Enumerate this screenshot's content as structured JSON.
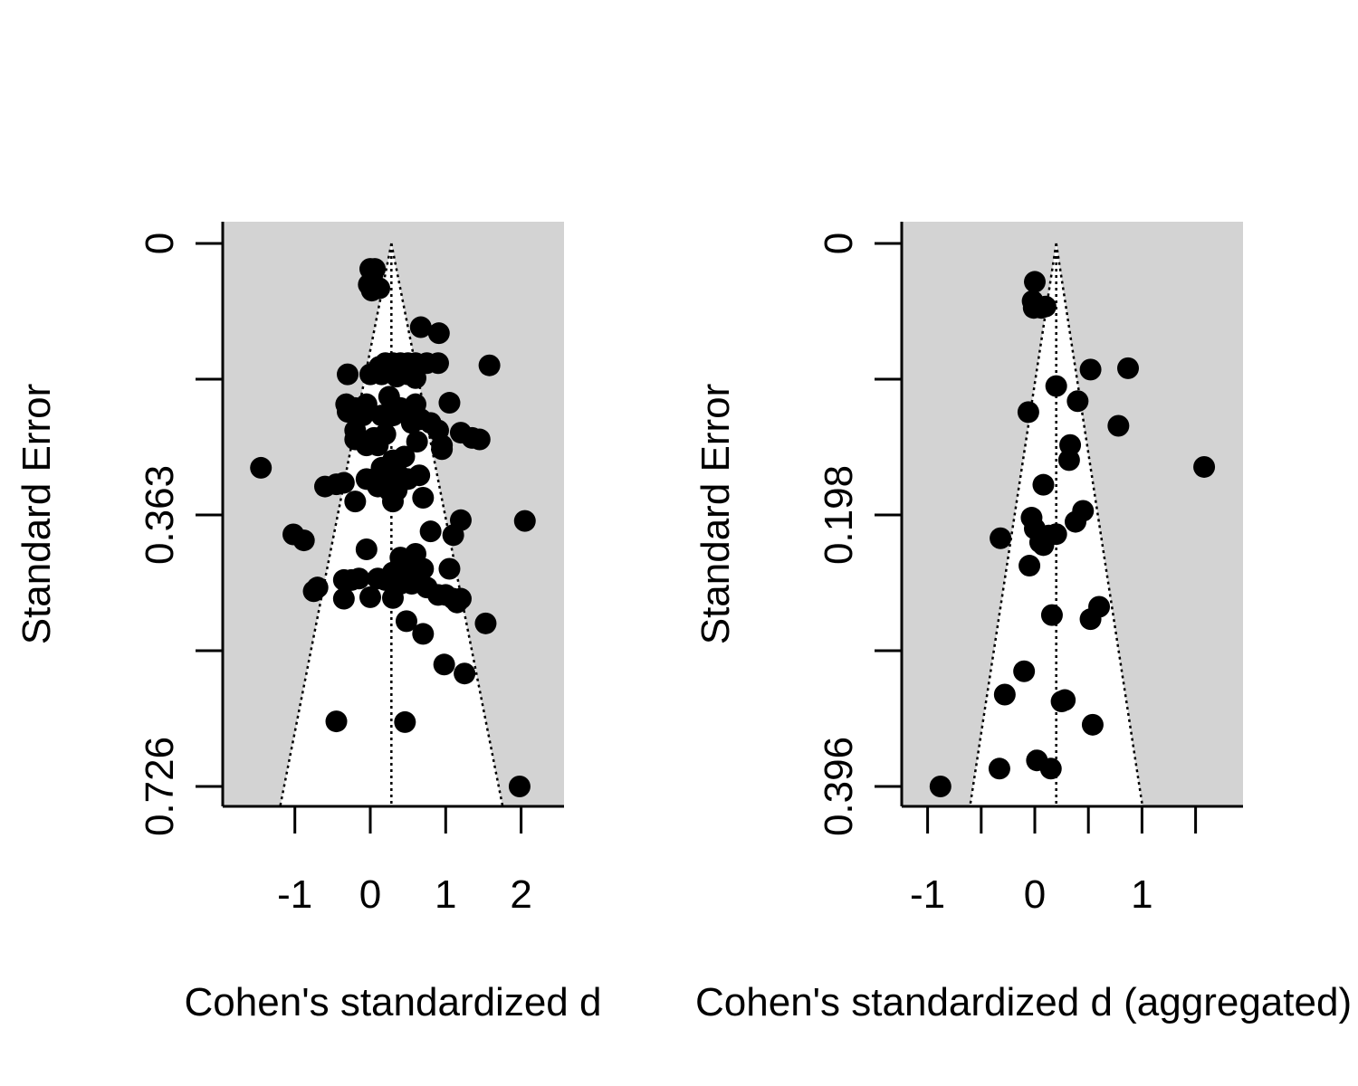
{
  "chart_data": [
    {
      "type": "scatter",
      "subtype": "funnel",
      "title": "",
      "xlabel": "Cohen's standardized d",
      "ylabel": "Standard Error",
      "xlim": [
        -1.96,
        2.56
      ],
      "ylim_reversed": [
        0,
        0.726
      ],
      "xticks": [
        -1,
        0,
        1,
        2
      ],
      "yticks": [
        0,
        0.1815,
        0.363,
        0.5445,
        0.726
      ],
      "ytick_labels": [
        "0",
        "",
        "0.363",
        "",
        "0.726"
      ],
      "pooled_estimate": 0.28,
      "background_color": "#d3d3d3",
      "funnel_color": "#ffffff",
      "points": [
        [
          0.0,
          0.034
        ],
        [
          0.06,
          0.034
        ],
        [
          0.03,
          0.041
        ],
        [
          -0.02,
          0.055
        ],
        [
          0.08,
          0.058
        ],
        [
          0.12,
          0.06
        ],
        [
          0.02,
          0.063
        ],
        [
          0.67,
          0.112
        ],
        [
          0.91,
          0.12
        ],
        [
          1.58,
          0.163
        ],
        [
          0.9,
          0.16
        ],
        [
          0.75,
          0.16
        ],
        [
          0.6,
          0.16
        ],
        [
          0.5,
          0.16
        ],
        [
          0.4,
          0.16
        ],
        [
          0.3,
          0.16
        ],
        [
          0.2,
          0.16
        ],
        [
          0.12,
          0.165
        ],
        [
          0.58,
          0.165
        ],
        [
          -0.3,
          0.175
        ],
        [
          0.0,
          0.175
        ],
        [
          0.15,
          0.175
        ],
        [
          0.35,
          0.178
        ],
        [
          0.5,
          0.175
        ],
        [
          0.6,
          0.18
        ],
        [
          0.25,
          0.205
        ],
        [
          -0.32,
          0.215
        ],
        [
          -0.2,
          0.22
        ],
        [
          -0.05,
          0.215
        ],
        [
          0.4,
          0.22
        ],
        [
          0.6,
          0.215
        ],
        [
          1.05,
          0.213
        ],
        [
          -0.3,
          0.225
        ],
        [
          -0.1,
          0.23
        ],
        [
          0.15,
          0.23
        ],
        [
          0.3,
          0.23
        ],
        [
          0.55,
          0.24
        ],
        [
          0.8,
          0.24
        ],
        [
          0.67,
          0.235
        ],
        [
          -0.2,
          0.25
        ],
        [
          0.05,
          0.26
        ],
        [
          0.2,
          0.255
        ],
        [
          0.9,
          0.25
        ],
        [
          1.2,
          0.253
        ],
        [
          1.35,
          0.26
        ],
        [
          1.45,
          0.262
        ],
        [
          0.95,
          0.27
        ],
        [
          -0.2,
          0.262
        ],
        [
          -0.05,
          0.27
        ],
        [
          0.1,
          0.27
        ],
        [
          0.62,
          0.265
        ],
        [
          0.95,
          0.275
        ],
        [
          -1.45,
          0.3
        ],
        [
          0.15,
          0.3
        ],
        [
          0.3,
          0.29
        ],
        [
          0.45,
          0.285
        ],
        [
          0.12,
          0.31
        ],
        [
          0.38,
          0.31
        ],
        [
          -0.05,
          0.315
        ],
        [
          0.2,
          0.315
        ],
        [
          0.5,
          0.315
        ],
        [
          0.65,
          0.31
        ],
        [
          -0.6,
          0.325
        ],
        [
          -0.45,
          0.322
        ],
        [
          -0.35,
          0.32
        ],
        [
          0.1,
          0.325
        ],
        [
          0.25,
          0.33
        ],
        [
          0.35,
          0.33
        ],
        [
          0.7,
          0.34
        ],
        [
          -0.2,
          0.345
        ],
        [
          0.3,
          0.345
        ],
        [
          2.05,
          0.371
        ],
        [
          1.2,
          0.37
        ],
        [
          0.8,
          0.385
        ],
        [
          1.1,
          0.39
        ],
        [
          -1.02,
          0.389
        ],
        [
          -0.88,
          0.397
        ],
        [
          -0.05,
          0.409
        ],
        [
          0.4,
          0.42
        ],
        [
          0.6,
          0.415
        ],
        [
          0.5,
          0.43
        ],
        [
          0.7,
          0.435
        ],
        [
          1.05,
          0.435
        ],
        [
          0.3,
          0.44
        ],
        [
          -0.35,
          0.45
        ],
        [
          -0.25,
          0.45
        ],
        [
          -0.15,
          0.448
        ],
        [
          0.1,
          0.448
        ],
        [
          0.2,
          0.45
        ],
        [
          0.4,
          0.455
        ],
        [
          0.55,
          0.455
        ],
        [
          0.75,
          0.46
        ],
        [
          0.9,
          0.47
        ],
        [
          -0.7,
          0.46
        ],
        [
          -0.75,
          0.465
        ],
        [
          -0.35,
          0.475
        ],
        [
          0.0,
          0.473
        ],
        [
          0.3,
          0.474
        ],
        [
          1.0,
          0.47
        ],
        [
          1.1,
          0.475
        ],
        [
          1.2,
          0.475
        ],
        [
          1.15,
          0.48
        ],
        [
          0.48,
          0.505
        ],
        [
          1.53,
          0.508
        ],
        [
          0.7,
          0.522
        ],
        [
          0.98,
          0.563
        ],
        [
          1.25,
          0.575
        ],
        [
          -0.45,
          0.639
        ],
        [
          0.46,
          0.64
        ],
        [
          1.98,
          0.726
        ]
      ]
    },
    {
      "type": "scatter",
      "subtype": "funnel",
      "title": "",
      "xlabel": "Cohen's standardized d (aggregated)",
      "ylabel": "Standard Error",
      "xlim": [
        -1.25,
        1.95
      ],
      "ylim_reversed": [
        0,
        0.396
      ],
      "xticks": [
        -1,
        -0.5,
        0,
        0.5,
        1,
        1.5
      ],
      "xtick_labels": [
        "-1",
        "",
        "0",
        "",
        "1",
        ""
      ],
      "yticks": [
        0,
        0.099,
        0.198,
        0.297,
        0.396
      ],
      "ytick_labels": [
        "0",
        "",
        "0.198",
        "",
        "0.396"
      ],
      "pooled_estimate": 0.2,
      "background_color": "#d3d3d3",
      "funnel_color": "#ffffff",
      "points": [
        [
          0.0,
          0.028
        ],
        [
          -0.02,
          0.042
        ],
        [
          0.1,
          0.046
        ],
        [
          -0.01,
          0.047
        ],
        [
          0.06,
          0.047
        ],
        [
          0.52,
          0.092
        ],
        [
          0.87,
          0.091
        ],
        [
          0.2,
          0.104
        ],
        [
          0.4,
          0.115
        ],
        [
          -0.06,
          0.123
        ],
        [
          0.78,
          0.133
        ],
        [
          0.33,
          0.147
        ],
        [
          0.32,
          0.158
        ],
        [
          1.58,
          0.163
        ],
        [
          0.08,
          0.176
        ],
        [
          0.45,
          0.195
        ],
        [
          0.38,
          0.203
        ],
        [
          -0.03,
          0.2
        ],
        [
          0.0,
          0.208
        ],
        [
          0.2,
          0.212
        ],
        [
          0.13,
          0.213
        ],
        [
          0.05,
          0.218
        ],
        [
          0.08,
          0.22
        ],
        [
          -0.32,
          0.215
        ],
        [
          -0.05,
          0.235
        ],
        [
          0.6,
          0.265
        ],
        [
          0.16,
          0.271
        ],
        [
          0.52,
          0.274
        ],
        [
          -0.1,
          0.312
        ],
        [
          -0.28,
          0.329
        ],
        [
          0.25,
          0.334
        ],
        [
          0.28,
          0.333
        ],
        [
          0.54,
          0.351
        ],
        [
          0.02,
          0.377
        ],
        [
          -0.33,
          0.383
        ],
        [
          0.15,
          0.383
        ],
        [
          -0.88,
          0.396
        ]
      ]
    }
  ]
}
